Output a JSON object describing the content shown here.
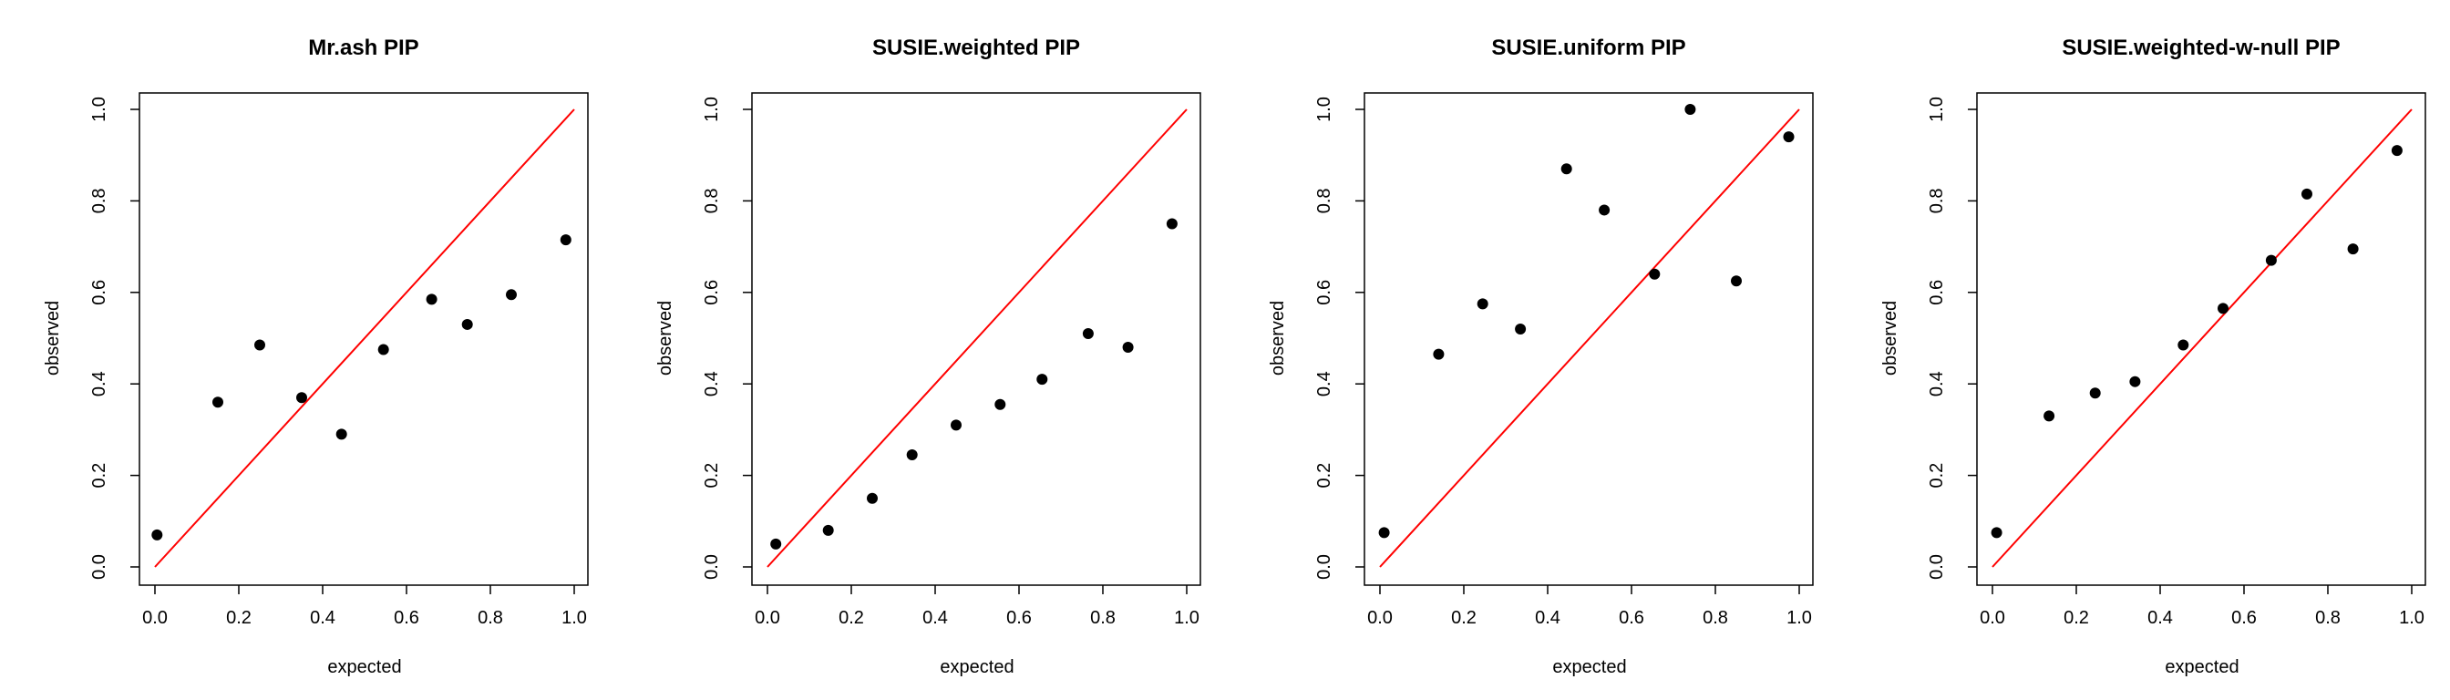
{
  "figure": {
    "panel_titles": [
      "Mr.ash PIP",
      "SUSIE.weighted PIP",
      "SUSIE.uniform PIP",
      "SUSIE.weighted-w-null PIP"
    ]
  },
  "chart_data": [
    {
      "type": "scatter",
      "title": "Mr.ash PIP",
      "xlabel": "expected",
      "ylabel": "observed",
      "xlim": [
        0,
        1
      ],
      "ylim": [
        0,
        1
      ],
      "xticks": [
        "0.0",
        "0.2",
        "0.4",
        "0.6",
        "0.8",
        "1.0"
      ],
      "yticks": [
        "0.0",
        "0.2",
        "0.4",
        "0.6",
        "0.8",
        "1.0"
      ],
      "reference_line": {
        "from": [
          0,
          0
        ],
        "to": [
          1,
          1
        ],
        "color": "#ff0000"
      },
      "point_color": "#000000",
      "points": [
        {
          "x": 0.005,
          "y": 0.07
        },
        {
          "x": 0.15,
          "y": 0.36
        },
        {
          "x": 0.25,
          "y": 0.485
        },
        {
          "x": 0.35,
          "y": 0.37
        },
        {
          "x": 0.445,
          "y": 0.29
        },
        {
          "x": 0.545,
          "y": 0.475
        },
        {
          "x": 0.66,
          "y": 0.585
        },
        {
          "x": 0.745,
          "y": 0.53
        },
        {
          "x": 0.85,
          "y": 0.595
        },
        {
          "x": 0.98,
          "y": 0.715
        }
      ]
    },
    {
      "type": "scatter",
      "title": "SUSIE.weighted PIP",
      "xlabel": "expected",
      "ylabel": "observed",
      "xlim": [
        0,
        1
      ],
      "ylim": [
        0,
        1
      ],
      "xticks": [
        "0.0",
        "0.2",
        "0.4",
        "0.6",
        "0.8",
        "1.0"
      ],
      "yticks": [
        "0.0",
        "0.2",
        "0.4",
        "0.6",
        "0.8",
        "1.0"
      ],
      "reference_line": {
        "from": [
          0,
          0
        ],
        "to": [
          1,
          1
        ],
        "color": "#ff0000"
      },
      "point_color": "#000000",
      "points": [
        {
          "x": 0.02,
          "y": 0.05
        },
        {
          "x": 0.145,
          "y": 0.08
        },
        {
          "x": 0.25,
          "y": 0.15
        },
        {
          "x": 0.345,
          "y": 0.245
        },
        {
          "x": 0.45,
          "y": 0.31
        },
        {
          "x": 0.555,
          "y": 0.355
        },
        {
          "x": 0.655,
          "y": 0.41
        },
        {
          "x": 0.765,
          "y": 0.51
        },
        {
          "x": 0.86,
          "y": 0.48
        },
        {
          "x": 0.965,
          "y": 0.75
        }
      ]
    },
    {
      "type": "scatter",
      "title": "SUSIE.uniform PIP",
      "xlabel": "expected",
      "ylabel": "observed",
      "xlim": [
        0,
        1
      ],
      "ylim": [
        0,
        1
      ],
      "xticks": [
        "0.0",
        "0.2",
        "0.4",
        "0.6",
        "0.8",
        "1.0"
      ],
      "yticks": [
        "0.0",
        "0.2",
        "0.4",
        "0.6",
        "0.8",
        "1.0"
      ],
      "reference_line": {
        "from": [
          0,
          0
        ],
        "to": [
          1,
          1
        ],
        "color": "#ff0000"
      },
      "point_color": "#000000",
      "points": [
        {
          "x": 0.01,
          "y": 0.075
        },
        {
          "x": 0.14,
          "y": 0.465
        },
        {
          "x": 0.245,
          "y": 0.575
        },
        {
          "x": 0.335,
          "y": 0.52
        },
        {
          "x": 0.445,
          "y": 0.87
        },
        {
          "x": 0.535,
          "y": 0.78
        },
        {
          "x": 0.655,
          "y": 0.64
        },
        {
          "x": 0.74,
          "y": 1.0
        },
        {
          "x": 0.85,
          "y": 0.625
        },
        {
          "x": 0.975,
          "y": 0.94
        }
      ]
    },
    {
      "type": "scatter",
      "title": "SUSIE.weighted-w-null PIP",
      "xlabel": "expected",
      "ylabel": "observed",
      "xlim": [
        0,
        1
      ],
      "ylim": [
        0,
        1
      ],
      "xticks": [
        "0.0",
        "0.2",
        "0.4",
        "0.6",
        "0.8",
        "1.0"
      ],
      "yticks": [
        "0.0",
        "0.2",
        "0.4",
        "0.6",
        "0.8",
        "1.0"
      ],
      "reference_line": {
        "from": [
          0,
          0
        ],
        "to": [
          1,
          1
        ],
        "color": "#ff0000"
      },
      "point_color": "#000000",
      "points": [
        {
          "x": 0.01,
          "y": 0.075
        },
        {
          "x": 0.135,
          "y": 0.33
        },
        {
          "x": 0.245,
          "y": 0.38
        },
        {
          "x": 0.34,
          "y": 0.405
        },
        {
          "x": 0.455,
          "y": 0.485
        },
        {
          "x": 0.55,
          "y": 0.565
        },
        {
          "x": 0.665,
          "y": 0.67
        },
        {
          "x": 0.75,
          "y": 0.815
        },
        {
          "x": 0.86,
          "y": 0.695
        },
        {
          "x": 0.965,
          "y": 0.91
        }
      ]
    }
  ]
}
